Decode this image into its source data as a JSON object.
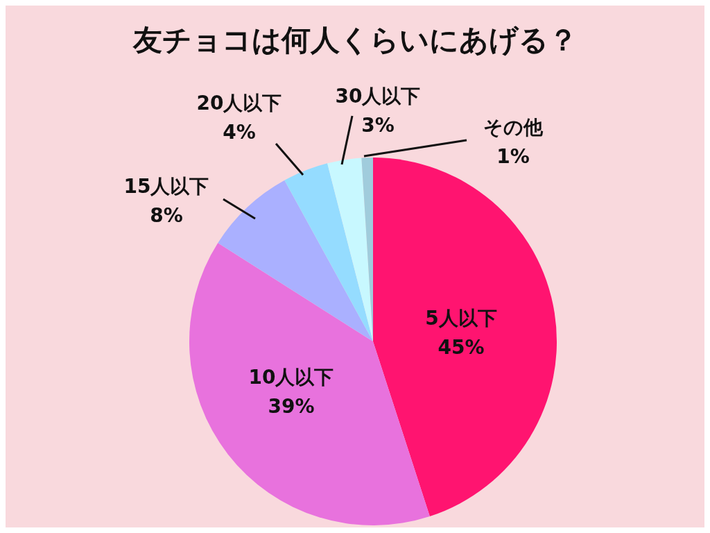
{
  "chart_data": {
    "type": "pie",
    "title": "友チョコは何人くらいにあげる？",
    "categories": [
      "5人以下",
      "10人以下",
      "15人以下",
      "20人以下",
      "30人以下",
      "その他"
    ],
    "values": [
      45,
      39,
      8,
      4,
      3,
      1
    ],
    "value_labels": [
      "45%",
      "39%",
      "8%",
      "4%",
      "3%",
      "1%"
    ],
    "colors": [
      "#ff1470",
      "#e872dd",
      "#aab0ff",
      "#95dcff",
      "#c8f8ff",
      "#a0ccdc"
    ],
    "legend": false
  }
}
